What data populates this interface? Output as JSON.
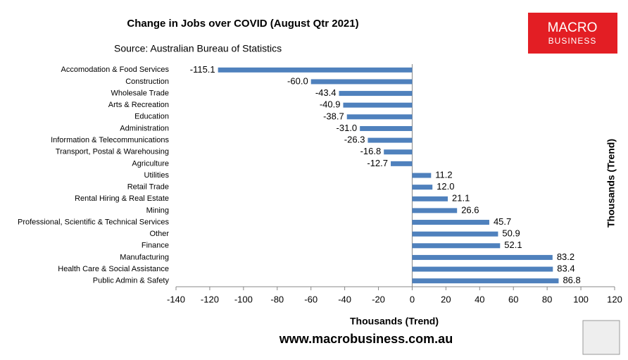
{
  "chart_data": {
    "type": "bar",
    "orientation": "horizontal",
    "title": "Change in Jobs over COVID (August Qtr 2021)",
    "subtitle": "Source: Australian Bureau of Statistics",
    "xlabel": "Thousands (Trend)",
    "ylabel": "Thousands (Trend)",
    "annotations": [
      "www.macrobusiness.com.au",
      "MACRO",
      "BUSINESS"
    ],
    "color": "#4f81bd",
    "categories": [
      "Accomodation & Food Services",
      "Construction",
      "Wholesale Trade",
      "Arts & Recreation",
      "Education",
      "Administration",
      "Information & Telecommunications",
      "Transport, Postal & Warehousing",
      "Agriculture",
      "Utilities",
      "Retail Trade",
      "Rental Hiring & Real Estate",
      "Mining",
      "Professional, Scientific & Technical Services",
      "Other",
      "Finance",
      "Manufacturing",
      "Health Care & Social Assistance",
      "Public Admin & Safety"
    ],
    "values": [
      -115.1,
      -60.0,
      -43.4,
      -40.9,
      -38.7,
      -31.0,
      -26.3,
      -16.8,
      -12.7,
      11.2,
      12.0,
      21.1,
      26.6,
      45.7,
      50.9,
      52.1,
      83.2,
      83.4,
      86.8
    ],
    "value_labels": [
      "-115.1",
      "-60.0",
      "-43.4",
      "-40.9",
      "-38.7",
      "-31.0",
      "-26.3",
      "-16.8",
      "-12.7",
      "11.2",
      "12.0",
      "21.1",
      "26.6",
      "45.7",
      "50.9",
      "52.1",
      "83.2",
      "83.4",
      "86.8"
    ],
    "xlim": [
      -140,
      120
    ],
    "xticks": [
      -140,
      -120,
      -100,
      -80,
      -60,
      -40,
      -20,
      0,
      20,
      40,
      60,
      80,
      100,
      120
    ]
  }
}
